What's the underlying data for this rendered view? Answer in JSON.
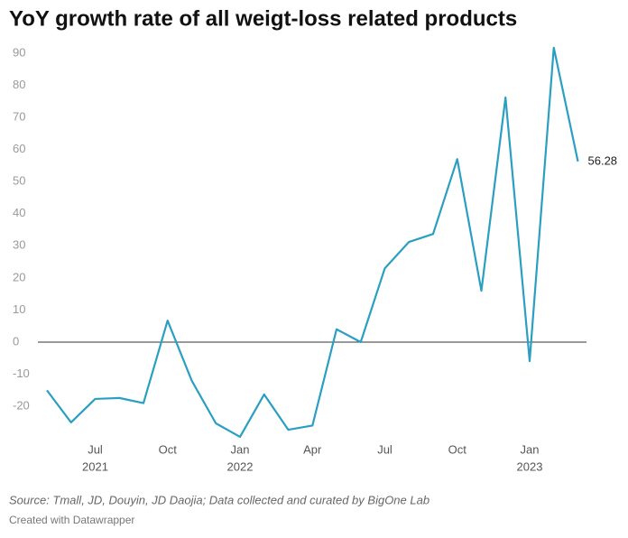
{
  "chart_data": {
    "type": "line",
    "title": "YoY growth rate of all weigt-loss related products",
    "source": "Source: Tmall, JD, Douyin, JD Daojia; Data collected and curated by BigOne Lab",
    "credit": "Created with Datawrapper",
    "categories": [
      null,
      null,
      "Jul",
      null,
      null,
      "Oct",
      null,
      null,
      "Jan",
      null,
      null,
      "Apr",
      null,
      null,
      "Jul",
      null,
      null,
      "Oct",
      null,
      null,
      "Jan",
      null,
      null
    ],
    "category_years": [
      null,
      null,
      "2021",
      null,
      null,
      null,
      null,
      null,
      "2022",
      null,
      null,
      null,
      null,
      null,
      null,
      null,
      null,
      null,
      null,
      null,
      "2023",
      null,
      null
    ],
    "series": [
      {
        "name": null,
        "color": "#2a9fc1",
        "values": [
          -15,
          -25,
          -17.7,
          -17.4,
          -19,
          6.7,
          -12,
          -25.3,
          -29.5,
          -16.3,
          -27.3,
          -26,
          4,
          0,
          23,
          31.2,
          33.7,
          57,
          16,
          76.2,
          -5.9,
          91.7,
          56.28
        ],
        "value_labels": [
          null,
          null,
          null,
          null,
          null,
          null,
          null,
          null,
          null,
          null,
          null,
          null,
          null,
          null,
          null,
          null,
          null,
          null,
          null,
          null,
          null,
          null,
          "56.28"
        ]
      }
    ],
    "ylim": [
      -30,
      92
    ],
    "yticks": [
      90,
      80,
      70,
      60,
      50,
      40,
      30,
      20,
      10,
      0,
      -10,
      -20
    ],
    "grid": false,
    "zero_line": true
  }
}
